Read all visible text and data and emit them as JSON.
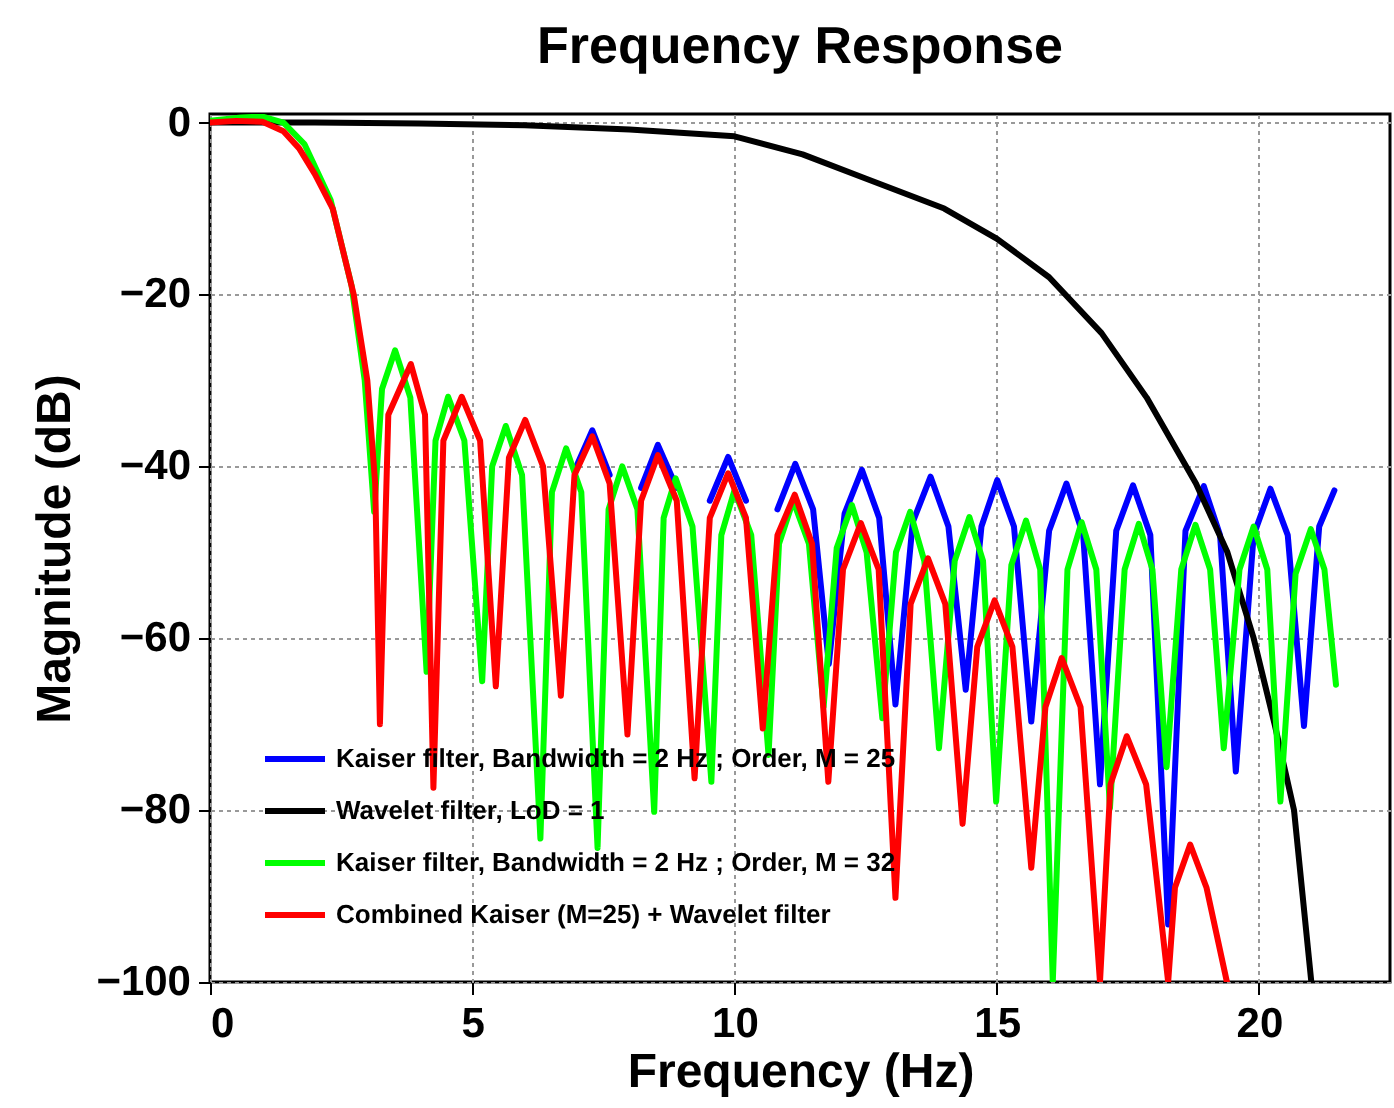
{
  "chart_data": {
    "type": "line",
    "title": "Frequency Response",
    "xlabel": "Frequency (Hz)",
    "ylabel": "Magnitude (dB)",
    "xlim": [
      0,
      22.5
    ],
    "ylim": [
      -100,
      1
    ],
    "xticks": [
      0,
      5,
      10,
      15,
      20
    ],
    "yticks": [
      -100,
      -80,
      -60,
      -40,
      -20,
      0
    ],
    "grid": true,
    "legend": "bottom left",
    "series": [
      {
        "name": "Kaiser filter, Bandwidth = 2 Hz ; Order, M = 25",
        "color": "#0000ff",
        "x": [
          6.95,
          7.29,
          7.62,
          7.96,
          8.22,
          8.54,
          8.9,
          9.24,
          9.53,
          9.88,
          10.22,
          10.54,
          10.82,
          11.16,
          11.5,
          11.8,
          12.1,
          12.43,
          12.76,
          13.07,
          13.4,
          13.74,
          14.08,
          14.41,
          14.71,
          15.01,
          15.33,
          15.66,
          16.0,
          16.33,
          16.65,
          16.97,
          17.28,
          17.6,
          17.93,
          18.27,
          18.6,
          18.95,
          19.26,
          19.56,
          19.9,
          20.22,
          20.55,
          20.86,
          21.15,
          21.44
        ],
        "values": [
          -40.5,
          -35.8,
          -41,
          null,
          -42.5,
          -37.5,
          -42.5,
          null,
          -44,
          -38.9,
          -44,
          null,
          -45,
          -39.7,
          -45,
          -63,
          -45.5,
          -40.4,
          -46,
          -67.7,
          -46.5,
          -41.2,
          -47,
          -66,
          -47,
          -41.6,
          -47,
          -69.7,
          -47.5,
          -42,
          -48,
          -77,
          -47.5,
          -42.2,
          -48,
          -93.3,
          -47.5,
          -42.3,
          -48,
          -75.5,
          -48,
          -42.6,
          -48,
          -70.2,
          -47,
          -42.8
        ]
      },
      {
        "name": "Wavelet filter, LoD = 1",
        "color": "#000000",
        "x": [
          0,
          2,
          4,
          6,
          8,
          10,
          11.3,
          12.5,
          14,
          15,
          16,
          17,
          17.86,
          18.8,
          19.4,
          19.9,
          20.3,
          20.67,
          21.0
        ],
        "values": [
          0,
          0,
          -0.1,
          -0.3,
          -0.8,
          -1.6,
          -3.7,
          -6.5,
          -10,
          -13.5,
          -18,
          -24.5,
          -32,
          -42,
          -50,
          -60,
          -70,
          -80,
          -100
        ]
      },
      {
        "name": "Kaiser filter, Bandwidth = 2 Hz ; Order, M = 32",
        "color": "#00ff00",
        "x": [
          0,
          0.6,
          1.0,
          1.4,
          1.8,
          2.3,
          2.7,
          2.95,
          3.13,
          3.28,
          3.53,
          3.82,
          4.13,
          4.3,
          4.54,
          4.85,
          5.19,
          5.38,
          5.64,
          5.95,
          6.3,
          6.52,
          6.79,
          7.08,
          7.39,
          7.6,
          7.86,
          8.15,
          8.47,
          8.65,
          8.88,
          9.2,
          9.56,
          9.75,
          10.0,
          10.32,
          10.65,
          10.85,
          11.12,
          11.42,
          11.7,
          11.95,
          12.24,
          12.52,
          12.82,
          13.08,
          13.35,
          13.62,
          13.9,
          14.2,
          14.48,
          14.74,
          14.99,
          15.28,
          15.56,
          15.83,
          16.07,
          16.35,
          16.62,
          16.9,
          17.16,
          17.44,
          17.71,
          17.97,
          18.24,
          18.52,
          18.79,
          19.07,
          19.33,
          19.63,
          19.9,
          20.16,
          20.41,
          20.7,
          20.99,
          21.25,
          21.47
        ],
        "values": [
          0.2,
          0.6,
          0.7,
          0,
          -2.5,
          -9,
          -19,
          -30,
          -45.3,
          -31,
          -26.5,
          -32,
          -63.9,
          -37,
          -31.9,
          -37,
          -65,
          -40,
          -35.3,
          -41,
          -83.3,
          -43,
          -37.9,
          -43,
          -84.4,
          -45,
          -40,
          -45,
          -80.2,
          -46,
          -41.4,
          -47,
          -76.7,
          -48,
          -42.8,
          -48,
          -73.6,
          -49,
          -44,
          -49,
          -68,
          -49.5,
          -44.5,
          -50,
          -69.3,
          -50,
          -45.3,
          -51,
          -72.8,
          -51,
          -45.9,
          -51,
          -79,
          -51.5,
          -46.3,
          -52,
          -100,
          -52,
          -46.5,
          -52,
          -79.8,
          -52,
          -46.7,
          -52,
          -75,
          -52,
          -46.8,
          -52,
          -72.8,
          -52,
          -47,
          -52,
          -79,
          -52.5,
          -47.3,
          -52,
          -65.4
        ]
      },
      {
        "name": "Combined Kaiser (M=25) + Wavelet filter",
        "color": "#ff0000",
        "x": [
          0,
          0.5,
          1.0,
          1.4,
          1.7,
          2.0,
          2.34,
          2.74,
          3.0,
          3.15,
          3.24,
          3.4,
          3.83,
          4.1,
          4.26,
          4.45,
          4.8,
          5.15,
          5.45,
          5.7,
          6.01,
          6.35,
          6.69,
          6.95,
          7.29,
          7.62,
          7.96,
          8.22,
          8.54,
          8.9,
          9.24,
          9.53,
          9.88,
          10.22,
          10.54,
          10.82,
          11.15,
          11.48,
          11.79,
          12.07,
          12.41,
          12.75,
          13.07,
          13.36,
          13.69,
          14.02,
          14.35,
          14.63,
          14.96,
          15.3,
          15.66,
          15.93,
          16.24,
          16.6,
          16.97,
          17.17,
          17.48,
          17.85,
          18.27,
          18.4,
          18.69,
          19.0,
          19.39
        ],
        "values": [
          0,
          0.2,
          0.1,
          -1,
          -3,
          -6,
          -10,
          -20,
          -30,
          -42,
          -70,
          -34,
          -28.1,
          -34,
          -77.4,
          -37,
          -31.9,
          -37,
          -65.6,
          -39,
          -34.6,
          -40,
          -66.7,
          -41,
          -36.5,
          -42,
          -71.2,
          -44,
          -38.7,
          -44,
          -76.3,
          -46,
          -40.8,
          -46,
          -70.5,
          -48,
          -43.3,
          -49,
          -76.7,
          -52,
          -46.6,
          -52,
          -90.2,
          -56,
          -50.7,
          -56,
          -81.6,
          -61,
          -55.6,
          -61,
          -86.7,
          -68,
          -62.3,
          -68,
          -100,
          -77,
          -71.4,
          -77,
          -100,
          -89,
          -84,
          -89,
          -100
        ]
      }
    ]
  }
}
